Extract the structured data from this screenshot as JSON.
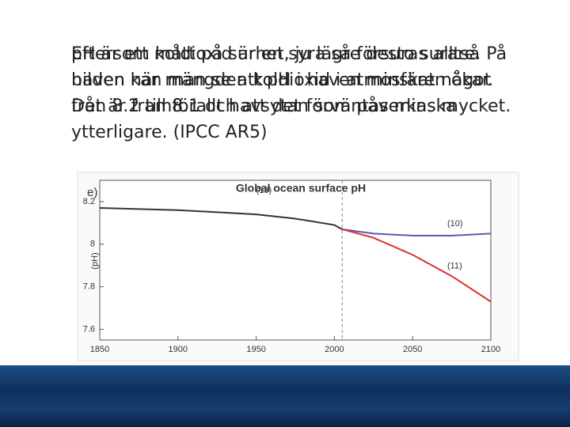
{
  "slide": {
    "text_layer_1": "pH är ett mått på surhet, ju lägre desto surare. På bilden kan man se att pH i haven minskat något från 8.2 till 8.1 och att det förväntas minska ytterligare. (IPCC AR5)",
    "text_layer_2": "Eftersom koldioxid är en syra så försuras alltså haven när mängden koldioxid i atmosfären ökar. Det är framförallt havsytan som påverkas mycket."
  },
  "chart_data": {
    "type": "line",
    "panel_label": "e)",
    "title": "Global ocean surface pH",
    "y_label": "(pH)",
    "xlim": [
      1850,
      2100
    ],
    "xticks": [
      1850,
      1900,
      1950,
      2000,
      2050,
      2100
    ],
    "ylim": [
      7.55,
      8.3
    ],
    "yticks": [
      7.6,
      7.8,
      8.0,
      8.2
    ],
    "divider_x": 2005,
    "series": [
      {
        "name": "(13)",
        "color": "#333333",
        "x": [
          1850,
          1900,
          1950,
          1975,
          2000,
          2005
        ],
        "values": [
          8.17,
          8.16,
          8.14,
          8.12,
          8.09,
          8.07
        ]
      },
      {
        "name": "(10)",
        "color": "#5560a8",
        "x": [
          2005,
          2025,
          2050,
          2075,
          2100
        ],
        "values": [
          8.07,
          8.05,
          8.04,
          8.04,
          8.05
        ]
      },
      {
        "name": "(11)",
        "color": "#d9312b",
        "x": [
          2005,
          2025,
          2050,
          2075,
          2100
        ],
        "values": [
          8.07,
          8.03,
          7.95,
          7.85,
          7.73
        ]
      }
    ]
  }
}
